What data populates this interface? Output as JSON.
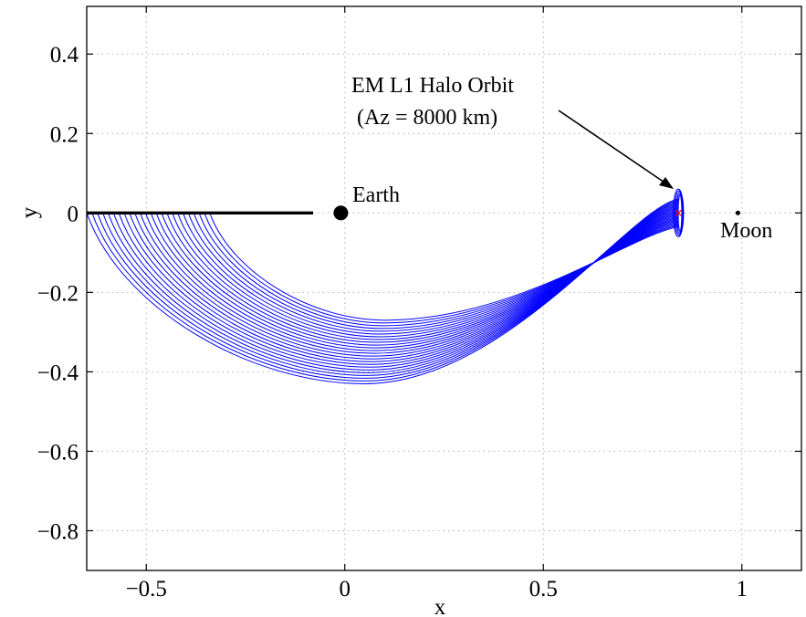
{
  "chart_data": {
    "type": "line",
    "title": "",
    "xlabel": "x",
    "ylabel": "y",
    "xlim": [
      -0.65,
      1.15
    ],
    "ylim": [
      -0.9,
      0.52
    ],
    "grid": true,
    "x_ticks": [
      {
        "value": -0.5,
        "label": "−0.5"
      },
      {
        "value": 0,
        "label": "0"
      },
      {
        "value": 0.5,
        "label": "0.5"
      },
      {
        "value": 1,
        "label": "1"
      }
    ],
    "y_ticks": [
      {
        "value": 0.4,
        "label": "0.4"
      },
      {
        "value": 0.2,
        "label": "0.2"
      },
      {
        "value": 0,
        "label": "0"
      },
      {
        "value": -0.2,
        "label": "−0.2"
      },
      {
        "value": -0.4,
        "label": "−0.4"
      },
      {
        "value": -0.6,
        "label": "−0.6"
      },
      {
        "value": -0.8,
        "label": "−0.8"
      }
    ],
    "trajectory_bundle": {
      "color": "#0000ff",
      "count": 24,
      "start_x_range": [
        -0.65,
        -0.34
      ],
      "min_y_range": [
        -0.43,
        -0.27
      ],
      "min_x_range": [
        0.05,
        0.1
      ],
      "end_point": [
        0.84,
        0.0
      ]
    },
    "halo_orbit": {
      "center": [
        0.84,
        0.0
      ],
      "half_width_x": 0.013,
      "half_height_y": 0.06,
      "color": "#0000ff",
      "center_marker_color": "#ff0000"
    },
    "black_line": {
      "x": [
        -0.65,
        -0.08
      ],
      "y": [
        0,
        0
      ],
      "color": "#000000"
    },
    "bodies": [
      {
        "name": "Earth",
        "x": -0.01,
        "y": 0.0,
        "marker": "large-dot"
      },
      {
        "name": "Moon",
        "x": 0.99,
        "y": 0.0,
        "marker": "small-dot"
      }
    ],
    "annotations": {
      "earth_label": "Earth",
      "moon_label": "Moon",
      "halo_label_line1": "EM L1 Halo Orbit",
      "halo_label_line2": "(Az = 8000 km)"
    }
  }
}
